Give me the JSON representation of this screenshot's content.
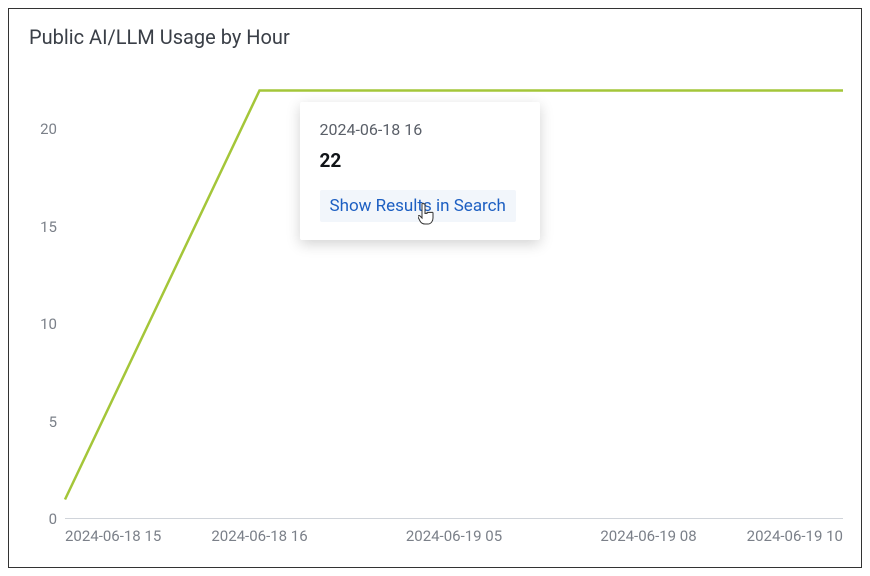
{
  "chart": {
    "title": "Public AI/LLM Usage by Hour",
    "type": "line",
    "line_color": "#a4c639",
    "line_width": 2.5,
    "background_color": "#ffffff",
    "baseline_color": "#d0d4da",
    "tick_color": "#7b8089",
    "tick_fontsize": 15,
    "title_fontsize": 20,
    "ylim": [
      0,
      23
    ],
    "yticks": [
      0,
      5,
      10,
      15,
      20
    ],
    "x_categories": [
      "2024-06-18 15",
      "2024-06-18 16",
      "2024-06-19 05",
      "2024-06-19 08",
      "2024-06-19 10"
    ],
    "values": [
      1,
      22,
      22,
      22,
      22
    ]
  },
  "tooltip": {
    "date": "2024-06-18 16",
    "value": "22",
    "link_label": "Show Results in Search",
    "link_bg": "#f2f6fb",
    "link_color": "#1d5fc2",
    "position_x_index": 1,
    "offset_x": 40,
    "offset_y": 12
  }
}
